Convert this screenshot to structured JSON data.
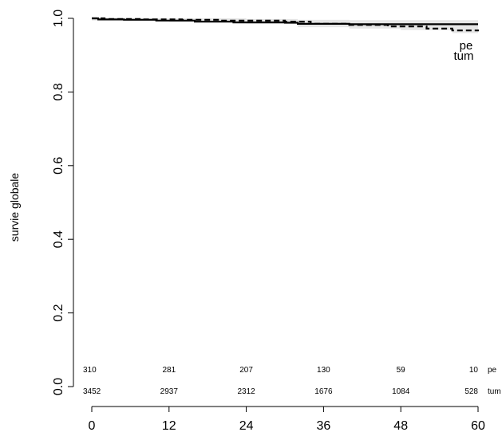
{
  "chart_data": {
    "type": "line",
    "title": "",
    "xlabel": "",
    "ylabel": "survie globale",
    "xlim": [
      0,
      60
    ],
    "ylim": [
      0,
      1
    ],
    "x_ticks": [
      "0",
      "12",
      "24",
      "36",
      "48",
      "60"
    ],
    "y_ticks": [
      "0.0",
      "0.2",
      "0.4",
      "0.6",
      "0.8",
      "1.0"
    ],
    "grid": false,
    "series": [
      {
        "name": "pe",
        "line_style": "dashed",
        "x": [
          0,
          2,
          8,
          14,
          20,
          30,
          34,
          40,
          46,
          52,
          56,
          60
        ],
        "y": [
          1.0,
          0.998,
          0.997,
          0.996,
          0.994,
          0.991,
          0.985,
          0.982,
          0.978,
          0.972,
          0.967,
          0.965
        ]
      },
      {
        "name": "tum",
        "line_style": "solid",
        "x": [
          0,
          1,
          5,
          10,
          16,
          22,
          30,
          32,
          40,
          48,
          54,
          60
        ],
        "y": [
          1.0,
          0.997,
          0.996,
          0.994,
          0.991,
          0.989,
          0.988,
          0.985,
          0.984,
          0.984,
          0.984,
          0.984
        ]
      }
    ],
    "confidence_band": {
      "x": [
        0,
        12,
        24,
        32,
        40,
        48,
        56,
        60
      ],
      "upper": [
        1.0,
        1.0,
        0.998,
        0.996,
        0.995,
        0.995,
        0.995,
        0.995
      ],
      "lower": [
        0.994,
        0.99,
        0.986,
        0.976,
        0.972,
        0.968,
        0.96,
        0.958
      ]
    },
    "number_at_risk": {
      "times": [
        0,
        12,
        24,
        36,
        48,
        60
      ],
      "rows": [
        {
          "label": "pe",
          "values": [
            "310",
            "281",
            "207",
            "130",
            "59",
            "10"
          ]
        },
        {
          "label": "tum",
          "values": [
            "3452",
            "2937",
            "2312",
            "1676",
            "1084",
            "528"
          ]
        }
      ]
    },
    "curve_labels": [
      "pe",
      "tum"
    ]
  },
  "colors": {
    "line": "#000000",
    "band": "#e6e6e6"
  }
}
